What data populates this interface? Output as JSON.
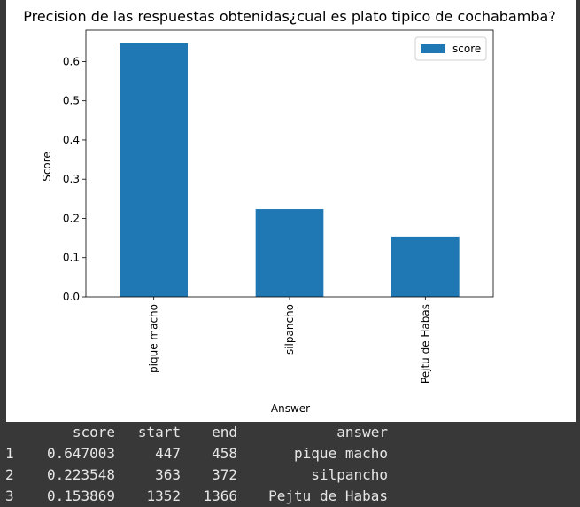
{
  "chart_data": {
    "type": "bar",
    "title": "Precision de las respuestas obtenidas¿cual es plato tipico de cochabamba?",
    "xlabel": "Answer",
    "ylabel": "Score",
    "categories": [
      "pique macho",
      "silpancho",
      "Pejtu de Habas"
    ],
    "series": [
      {
        "name": "score",
        "values": [
          0.647003,
          0.223548,
          0.153869
        ],
        "color": "#1f77b4"
      }
    ],
    "ylim": [
      0,
      0.68
    ],
    "yticks": [
      "0.0",
      "0.1",
      "0.2",
      "0.3",
      "0.4",
      "0.5",
      "0.6"
    ],
    "legend_position": "top-right",
    "grid": false
  },
  "table": {
    "columns": [
      "score",
      "start",
      "end",
      "answer"
    ],
    "rows": [
      {
        "index": "1",
        "score": "0.647003",
        "start": "447",
        "end": "458",
        "answer": "pique macho"
      },
      {
        "index": "2",
        "score": "0.223548",
        "start": "363",
        "end": "372",
        "answer": "silpancho"
      },
      {
        "index": "3",
        "score": "0.153869",
        "start": "1352",
        "end": "1366",
        "answer": "Pejtu de Habas"
      }
    ]
  }
}
